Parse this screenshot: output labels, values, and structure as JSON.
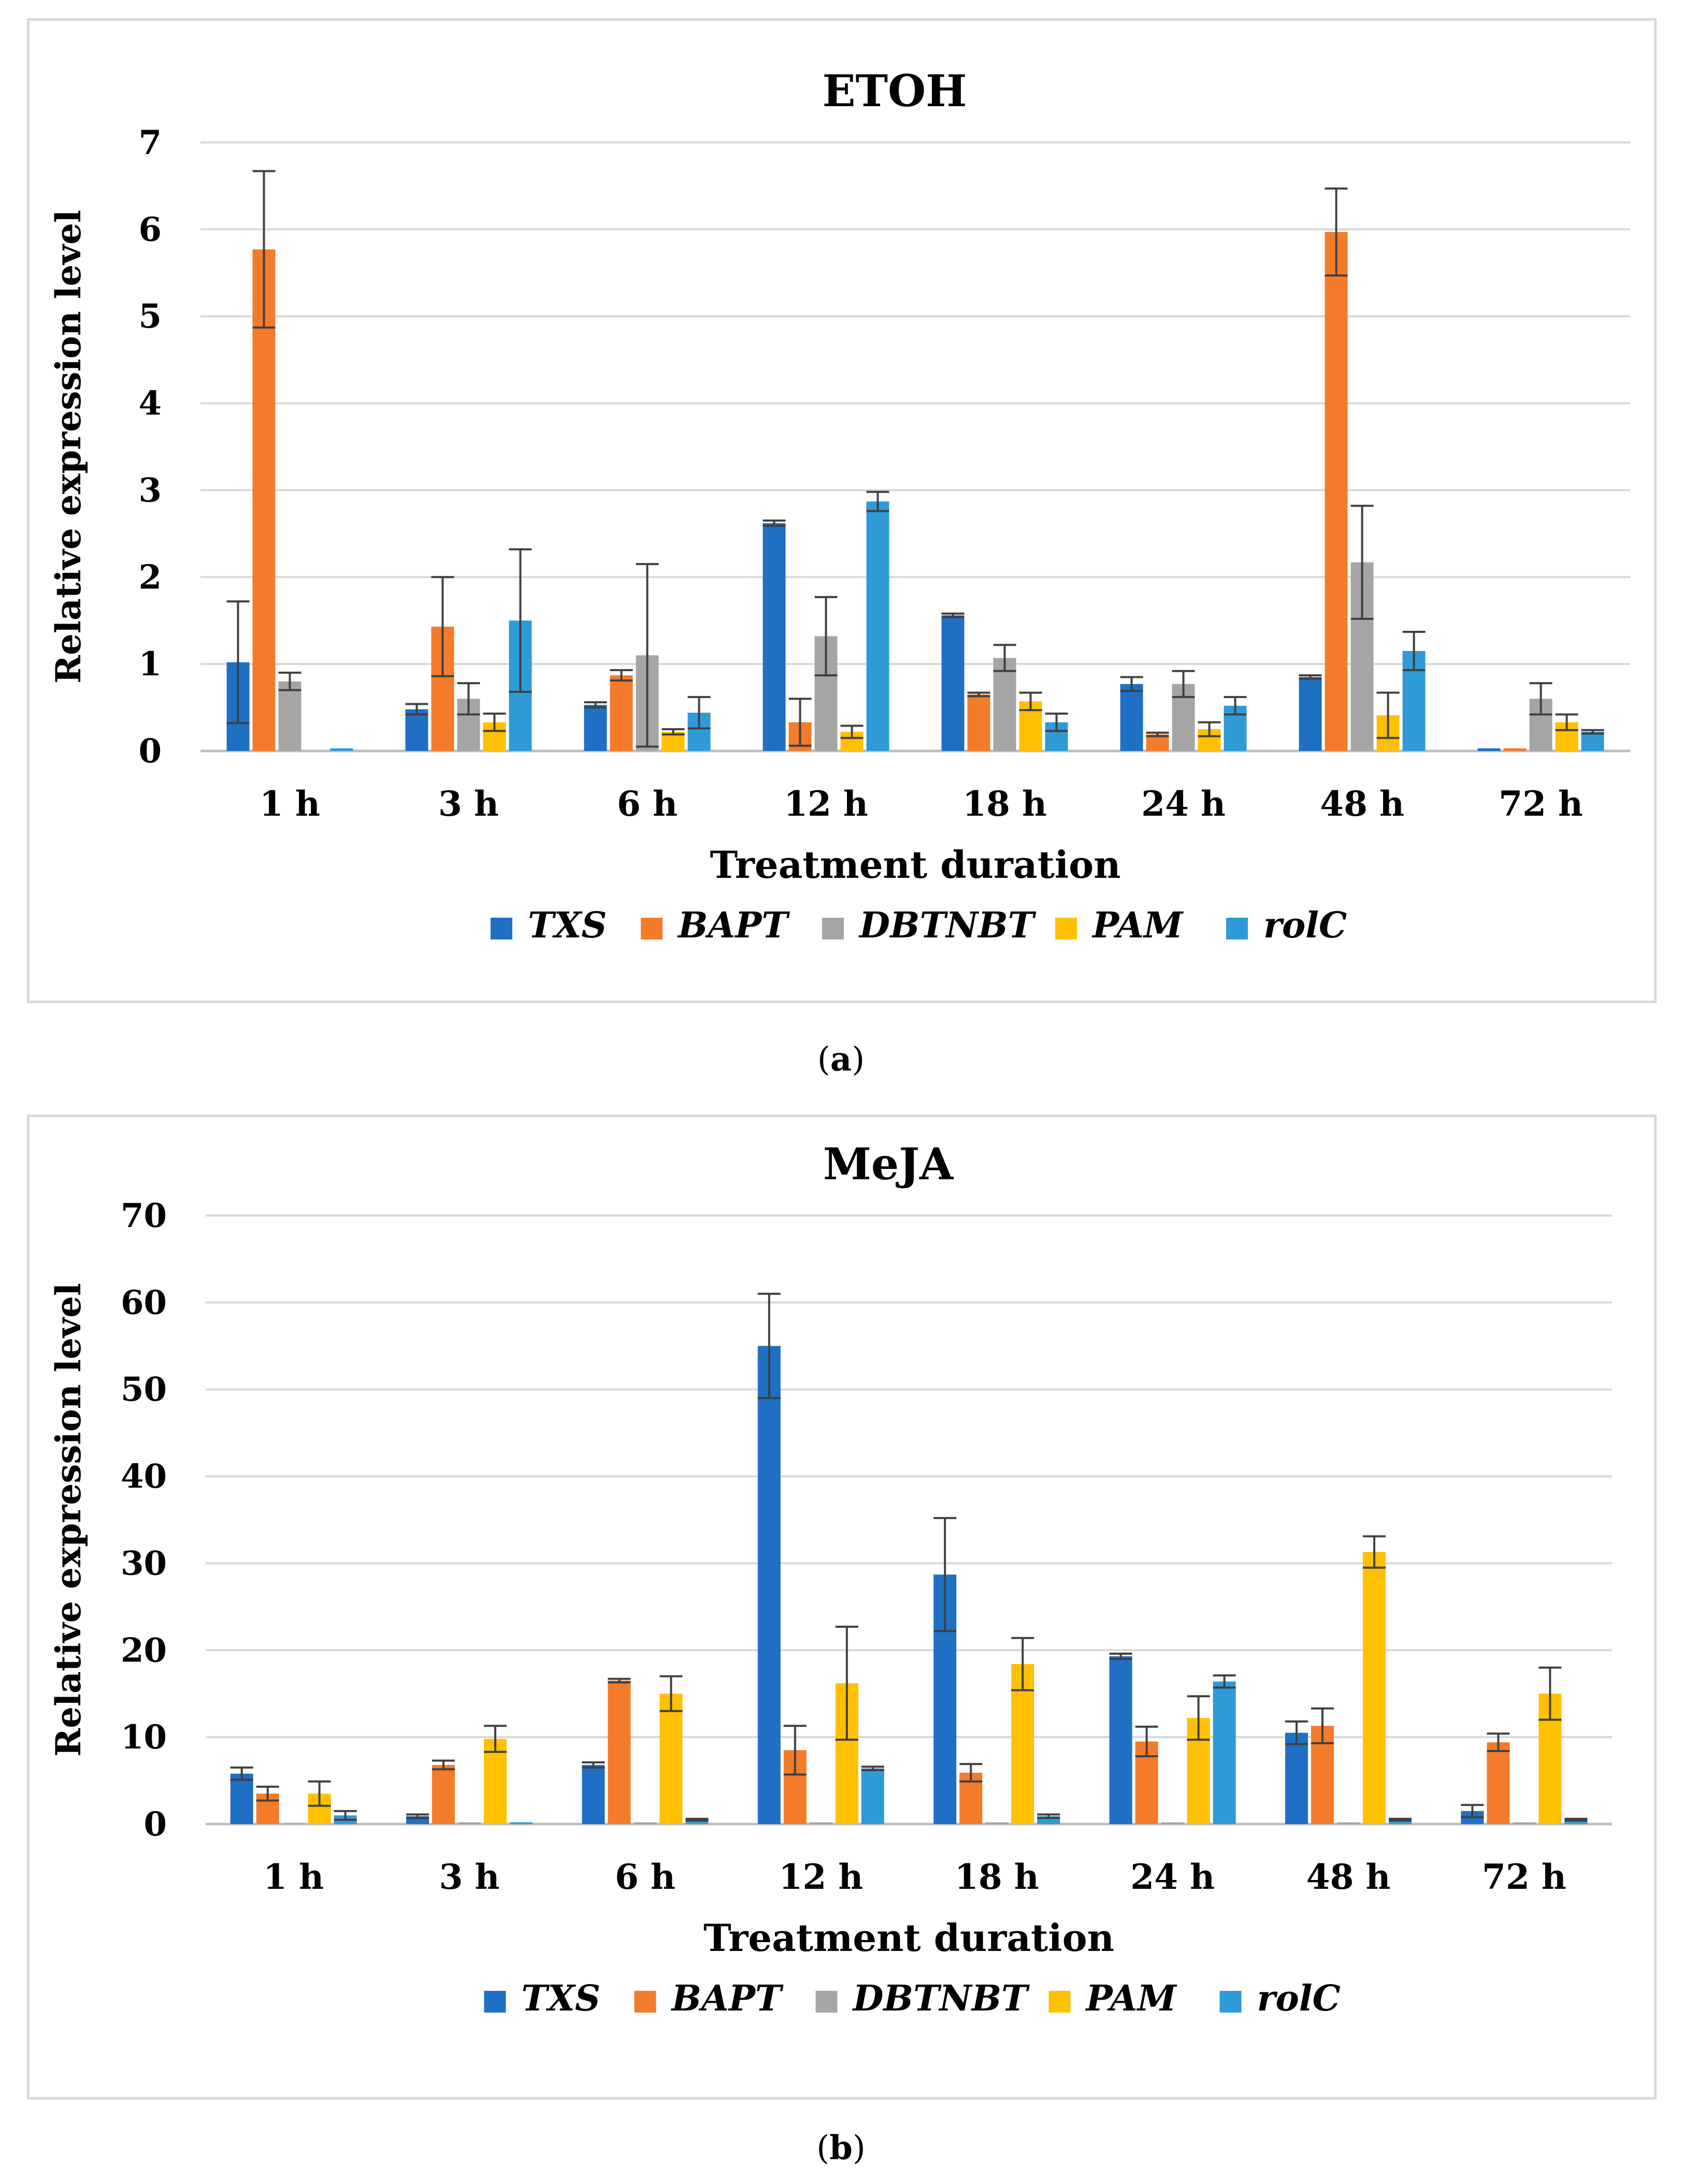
{
  "series_names": [
    "TXS",
    "BAPT",
    "DBTNBT",
    "PAM",
    "rolC"
  ],
  "series_colors": [
    "#1f6fc5",
    "#f47b2a",
    "#a5a5a5",
    "#ffc000",
    "#2e9bd6"
  ],
  "chart_data": [
    {
      "type": "bar",
      "panel_label": "a",
      "title": "ETOH",
      "xlabel": "Treatment duration",
      "ylabel": "Relative  expression level",
      "ylim": [
        0,
        7
      ],
      "yticks": [
        0,
        1,
        2,
        3,
        4,
        5,
        6,
        7
      ],
      "categories": [
        "1 h",
        "3 h",
        "6 h",
        "12 h",
        "18 h",
        "24 h",
        "48 h",
        "72 h"
      ],
      "series": [
        {
          "name": "TXS",
          "values": [
            1.02,
            0.48,
            0.53,
            2.62,
            1.56,
            0.77,
            0.85,
            0.03
          ],
          "errors": [
            0.7,
            0.06,
            0.03,
            0.03,
            0.02,
            0.08,
            0.02,
            0.0
          ]
        },
        {
          "name": "BAPT",
          "values": [
            5.77,
            1.43,
            0.87,
            0.33,
            0.65,
            0.19,
            5.97,
            0.03
          ],
          "errors": [
            0.9,
            0.57,
            0.06,
            0.27,
            0.02,
            0.02,
            0.5,
            0.0
          ]
        },
        {
          "name": "DBTNBT",
          "values": [
            0.8,
            0.6,
            1.1,
            1.32,
            1.07,
            0.77,
            2.17,
            0.6
          ],
          "errors": [
            0.1,
            0.18,
            1.05,
            0.45,
            0.15,
            0.15,
            0.65,
            0.18
          ]
        },
        {
          "name": "PAM",
          "values": [
            0.0,
            0.33,
            0.22,
            0.22,
            0.57,
            0.25,
            0.41,
            0.33
          ],
          "errors": [
            0.0,
            0.1,
            0.03,
            0.07,
            0.1,
            0.08,
            0.26,
            0.09
          ]
        },
        {
          "name": "rolC",
          "values": [
            0.03,
            1.5,
            0.44,
            2.87,
            0.33,
            0.52,
            1.15,
            0.22
          ],
          "errors": [
            0.0,
            0.82,
            0.18,
            0.11,
            0.1,
            0.1,
            0.22,
            0.02
          ]
        }
      ]
    },
    {
      "type": "bar",
      "panel_label": "b",
      "title": "MeJA",
      "xlabel": "Treatment duration",
      "ylabel": "Relative  expression level",
      "ylim": [
        0,
        70
      ],
      "yticks": [
        0,
        10,
        20,
        30,
        40,
        50,
        60,
        70
      ],
      "categories": [
        "1 h",
        "3 h",
        "6 h",
        "12 h",
        "18 h",
        "24 h",
        "48 h",
        "72 h"
      ],
      "series": [
        {
          "name": "TXS",
          "values": [
            5.8,
            0.9,
            6.8,
            55.0,
            28.7,
            19.3,
            10.5,
            1.5
          ],
          "errors": [
            0.7,
            0.2,
            0.3,
            6.0,
            6.5,
            0.3,
            1.3,
            0.7
          ]
        },
        {
          "name": "BAPT",
          "values": [
            3.5,
            6.8,
            16.5,
            8.5,
            5.9,
            9.5,
            11.3,
            9.4
          ],
          "errors": [
            0.8,
            0.5,
            0.2,
            2.8,
            1.0,
            1.7,
            2.0,
            1.0
          ]
        },
        {
          "name": "DBTNBT",
          "values": [
            0.1,
            0.2,
            0.2,
            0.2,
            0.2,
            0.2,
            0.2,
            0.2
          ],
          "errors": [
            0.0,
            0.0,
            0.0,
            0.0,
            0.0,
            0.0,
            0.0,
            0.0
          ]
        },
        {
          "name": "PAM",
          "values": [
            3.5,
            9.8,
            15.0,
            16.2,
            18.4,
            12.2,
            31.3,
            15.0
          ],
          "errors": [
            1.4,
            1.5,
            2.0,
            6.5,
            3.0,
            2.5,
            1.8,
            3.0
          ]
        },
        {
          "name": "rolC",
          "values": [
            1.0,
            0.2,
            0.5,
            6.4,
            0.9,
            16.4,
            0.5,
            0.5
          ],
          "errors": [
            0.5,
            0.0,
            0.1,
            0.2,
            0.2,
            0.7,
            0.1,
            0.1
          ]
        }
      ]
    }
  ]
}
